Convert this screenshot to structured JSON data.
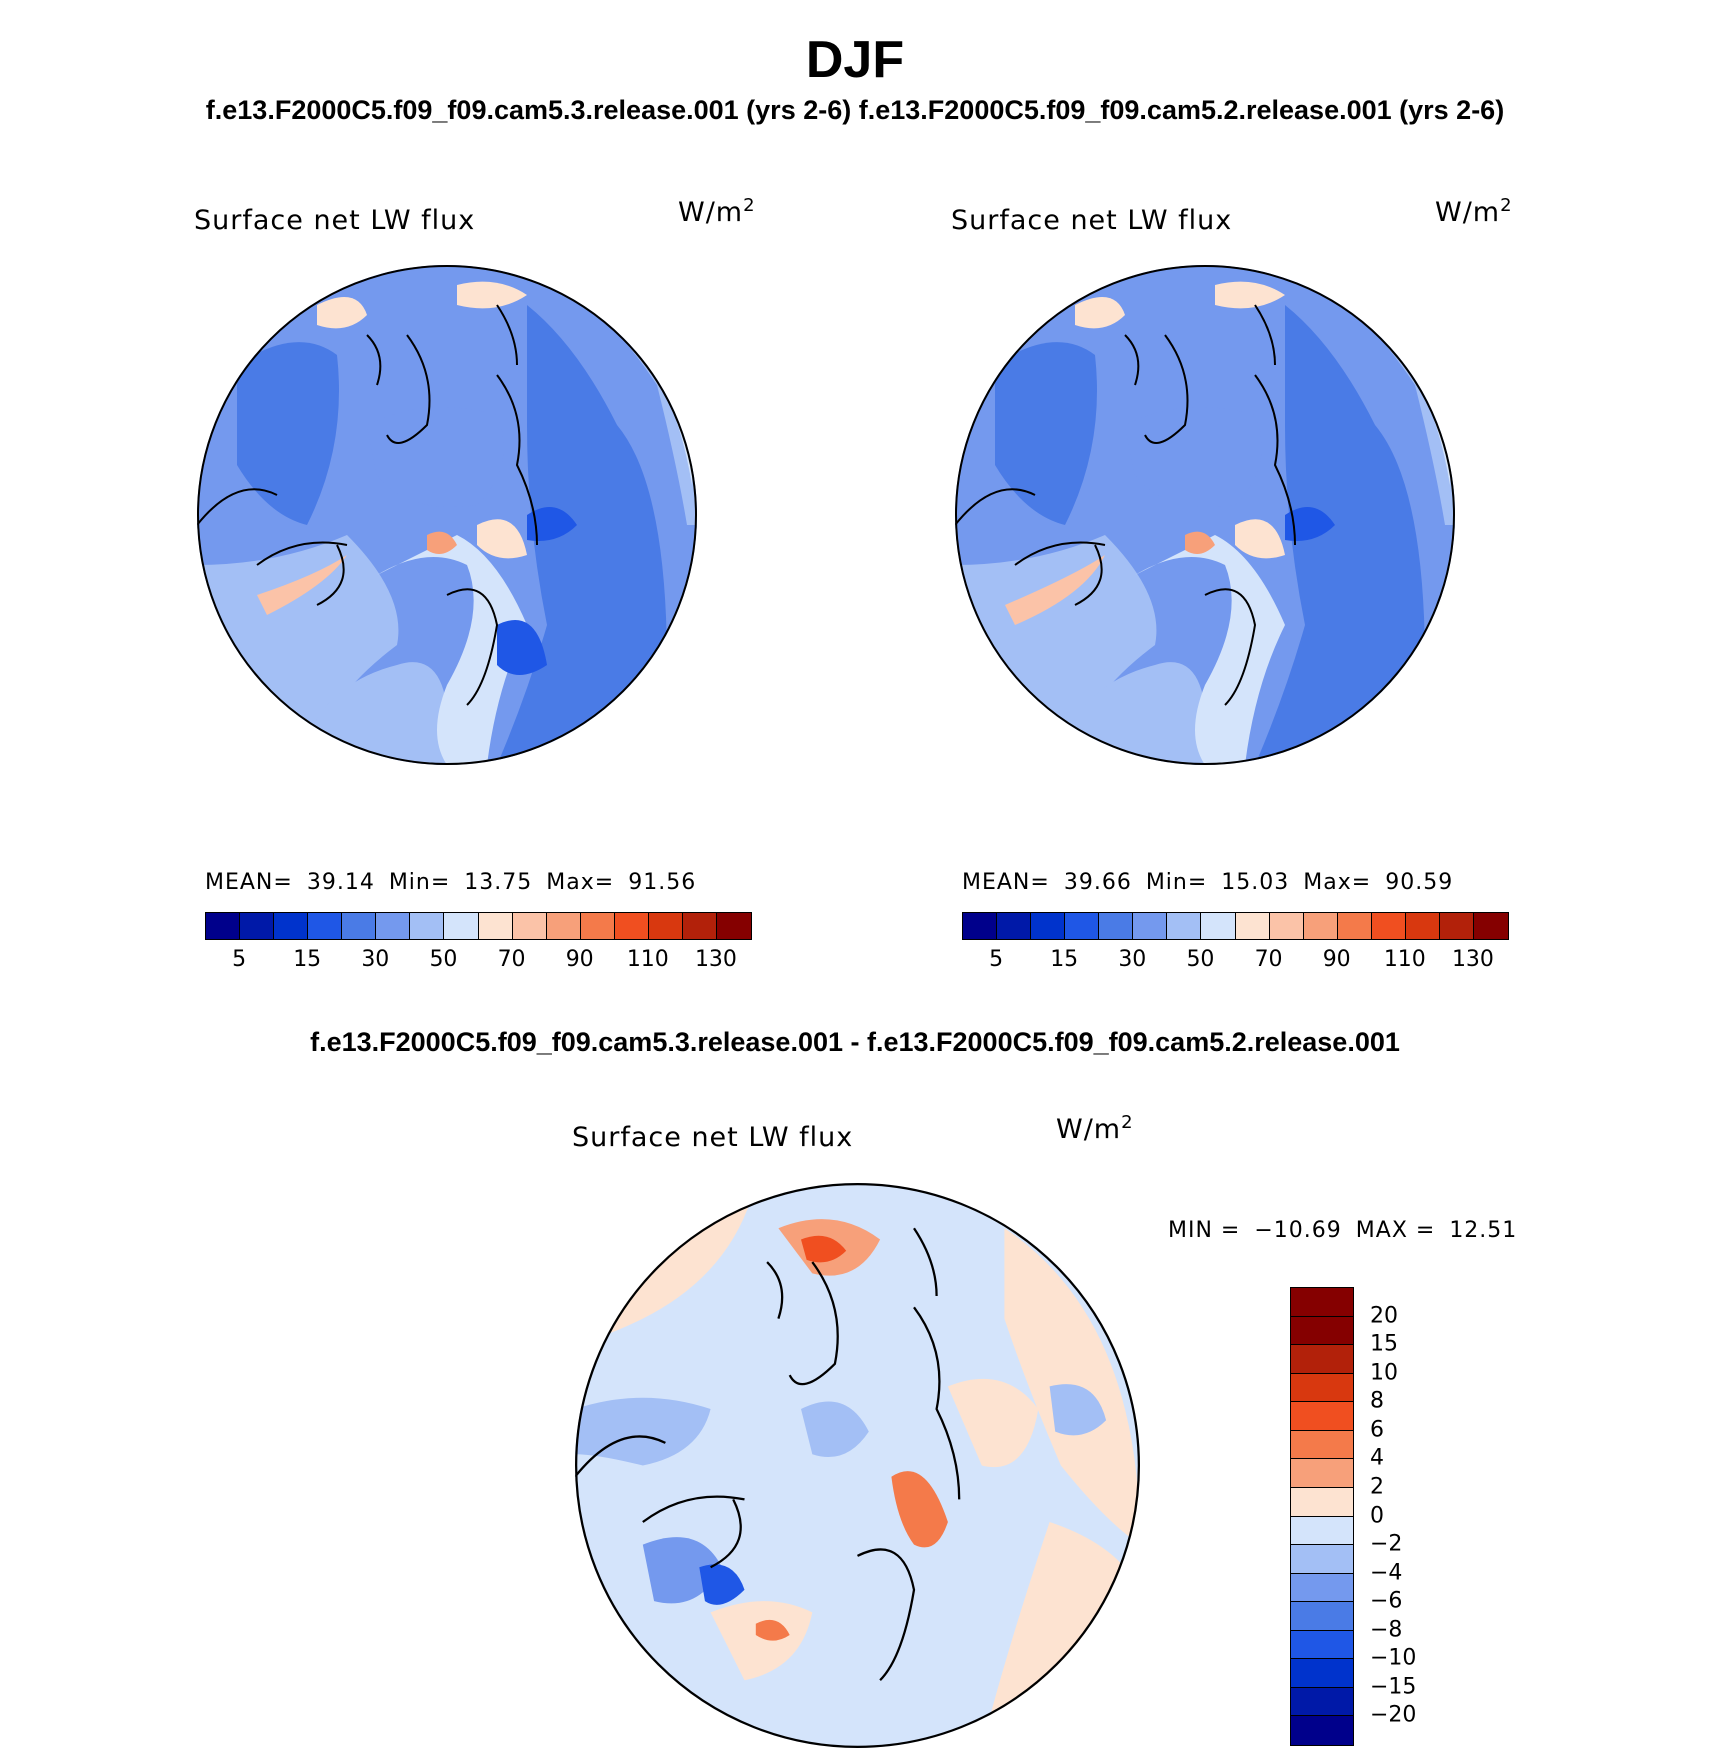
{
  "title": "DJF",
  "top_subtitle_left": "f.e13.F2000C5.f09_f09.cam5.3.release.001 (yrs 2-6)",
  "top_subtitle_right": "f.e13.F2000C5.f09_f09.cam5.2.release.001 (yrs 2-6)",
  "diff_subtitle": "f.e13.F2000C5.f09_f09.cam5.3.release.001 - f.e13.F2000C5.f09_f09.cam5.2.release.001",
  "panels": [
    {
      "variable": "Surface net LW flux",
      "units": "W/m",
      "units_exp": "2",
      "mean_label": "MEAN=",
      "mean": "39.14",
      "min_label": "Min=",
      "min": "13.75",
      "max_label": "Max=",
      "max": "91.56"
    },
    {
      "variable": "Surface net LW flux",
      "units": "W/m",
      "units_exp": "2",
      "mean_label": "MEAN=",
      "mean": "39.66",
      "min_label": "Min=",
      "min": "15.03",
      "max_label": "Max=",
      "max": "90.59"
    }
  ],
  "diff_panel": {
    "variable": "Surface net LW flux",
    "units": "W/m",
    "units_exp": "2",
    "min_label": "MIN =",
    "min": "−10.69",
    "max_label": "MAX =",
    "max": "12.51"
  },
  "colorbar_main": {
    "colors": [
      "#00008b",
      "#0019a8",
      "#0033cc",
      "#1f57e6",
      "#4a7be6",
      "#7499ee",
      "#a3bff5",
      "#d4e4fb",
      "#fde3d1",
      "#fbc3a8",
      "#f7a07a",
      "#f47a4a",
      "#f04f20",
      "#d8380f",
      "#b2210a",
      "#850000"
    ],
    "labels": [
      "5",
      "15",
      "30",
      "50",
      "70",
      "90",
      "110",
      "130"
    ]
  },
  "colorbar_diff": {
    "colors": [
      "#850000",
      "#b2210a",
      "#d8380f",
      "#f04f20",
      "#f47a4a",
      "#f7a07a",
      "#fde3d1",
      "#d4e4fb",
      "#a3bff5",
      "#7499ee",
      "#4a7be6",
      "#1f57e6",
      "#0033cc",
      "#0019a8",
      "#00008b"
    ],
    "labels": [
      "20",
      "15",
      "10",
      "8",
      "6",
      "4",
      "2",
      "0",
      "−2",
      "−4",
      "−6",
      "−8",
      "−10",
      "−15",
      "−20"
    ]
  }
}
